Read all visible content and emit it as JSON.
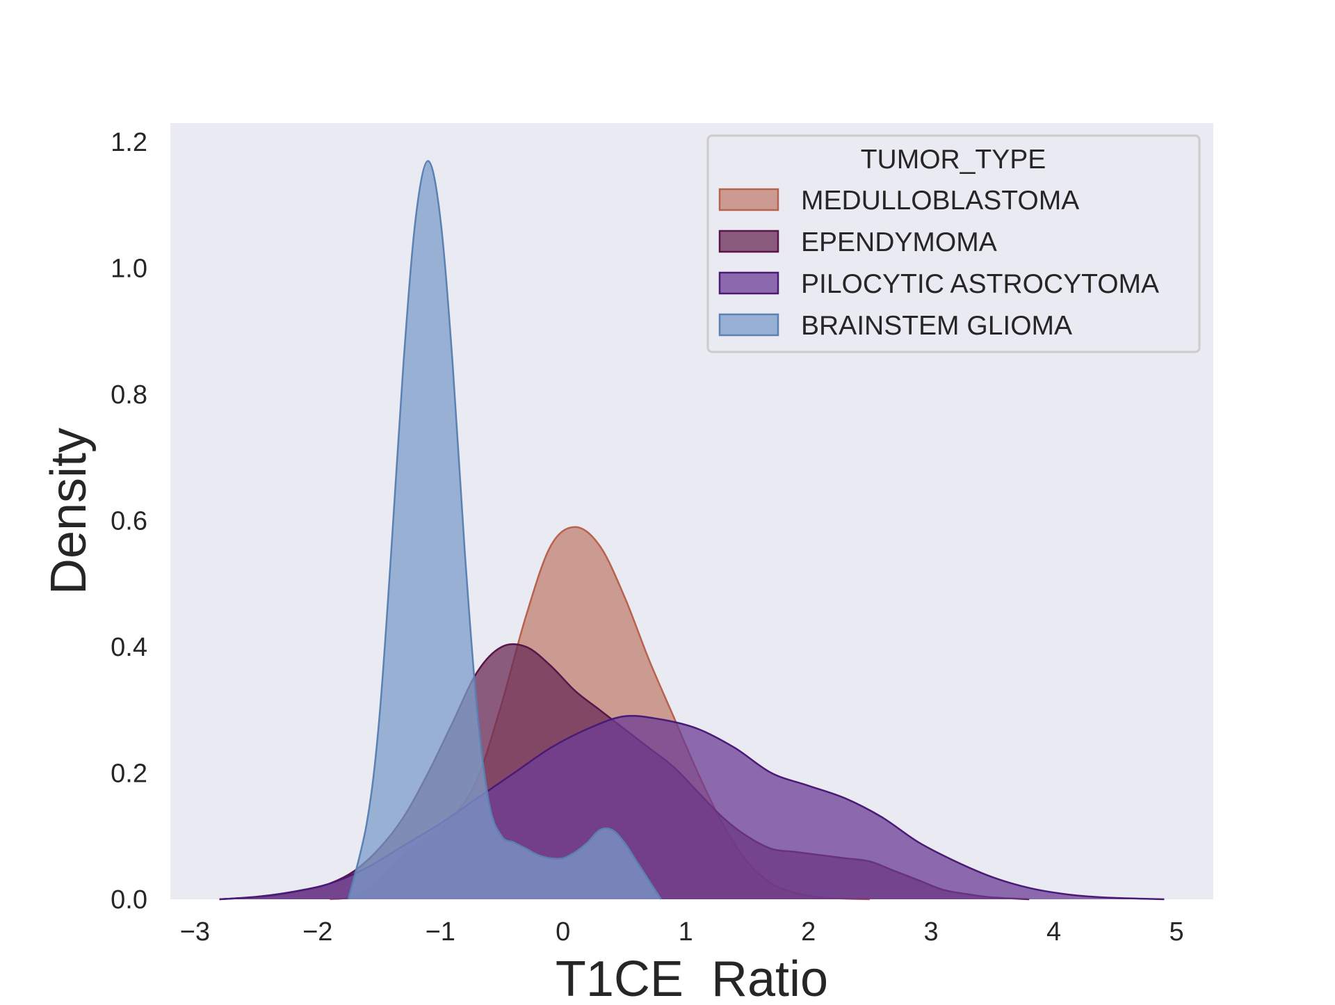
{
  "chart_data": {
    "type": "area",
    "xlabel": "T1CE_Ratio",
    "ylabel": "Density",
    "xlim": [
      -3.2,
      5.3
    ],
    "ylim": [
      0,
      1.23
    ],
    "x_ticks": [
      -3,
      -2,
      -1,
      0,
      1,
      2,
      3,
      4,
      5
    ],
    "x_tick_labels": [
      "−3",
      "−2",
      "−1",
      "0",
      "1",
      "2",
      "3",
      "4",
      "5"
    ],
    "y_ticks": [
      0.0,
      0.2,
      0.4,
      0.6,
      0.8,
      1.0,
      1.2
    ],
    "y_tick_labels": [
      "0.0",
      "0.2",
      "0.4",
      "0.6",
      "0.8",
      "1.0",
      "1.2"
    ],
    "grid": false,
    "background": "#eaeaf2",
    "legend": {
      "title": "TUMOR_TYPE",
      "position": "top-right"
    },
    "series": [
      {
        "name": "MEDULLOBLASTOMA",
        "fill": "#c07f6f",
        "stroke": "#b8614c",
        "x": [
          -1.9,
          -1.7,
          -1.5,
          -1.3,
          -1.1,
          -0.9,
          -0.7,
          -0.5,
          -0.3,
          -0.1,
          0.1,
          0.3,
          0.5,
          0.7,
          0.9,
          1.1,
          1.3,
          1.5,
          1.7,
          1.9,
          2.1,
          2.3,
          2.5
        ],
        "y": [
          0.0,
          0.005,
          0.03,
          0.07,
          0.1,
          0.13,
          0.19,
          0.31,
          0.45,
          0.56,
          0.59,
          0.56,
          0.48,
          0.38,
          0.29,
          0.2,
          0.12,
          0.06,
          0.025,
          0.01,
          0.003,
          0.001,
          0.0
        ]
      },
      {
        "name": "EPENDYMOMA",
        "fill": "#6a2b55",
        "stroke": "#5a1548",
        "x": [
          -2.8,
          -2.4,
          -2.1,
          -1.9,
          -1.7,
          -1.5,
          -1.3,
          -1.1,
          -0.9,
          -0.7,
          -0.5,
          -0.3,
          -0.1,
          0.1,
          0.3,
          0.5,
          0.7,
          0.9,
          1.1,
          1.3,
          1.5,
          1.7,
          1.9,
          2.1,
          2.3,
          2.5,
          2.7,
          2.9,
          3.1,
          3.3,
          3.5,
          3.8
        ],
        "y": [
          0.0,
          0.005,
          0.015,
          0.025,
          0.045,
          0.08,
          0.13,
          0.2,
          0.28,
          0.36,
          0.4,
          0.4,
          0.37,
          0.33,
          0.3,
          0.27,
          0.24,
          0.21,
          0.17,
          0.13,
          0.1,
          0.08,
          0.075,
          0.07,
          0.065,
          0.06,
          0.045,
          0.03,
          0.015,
          0.008,
          0.003,
          0.0
        ]
      },
      {
        "name": "PILOCYTIC ASTROCYTOMA",
        "fill": "#6c3c94",
        "stroke": "#4a1a78",
        "x": [
          -2.8,
          -2.5,
          -2.2,
          -1.9,
          -1.6,
          -1.3,
          -1.0,
          -0.7,
          -0.4,
          -0.1,
          0.2,
          0.5,
          0.8,
          1.1,
          1.4,
          1.7,
          2.0,
          2.3,
          2.6,
          2.9,
          3.2,
          3.5,
          3.8,
          4.1,
          4.4,
          4.7,
          4.9
        ],
        "y": [
          0.0,
          0.004,
          0.012,
          0.025,
          0.05,
          0.085,
          0.12,
          0.16,
          0.2,
          0.24,
          0.27,
          0.29,
          0.285,
          0.27,
          0.24,
          0.2,
          0.18,
          0.16,
          0.13,
          0.09,
          0.06,
          0.035,
          0.018,
          0.008,
          0.003,
          0.001,
          0.0
        ]
      },
      {
        "name": "BRAINSTEM GLIOMA",
        "fill": "#7b9cc9",
        "stroke": "#5b80b4",
        "x": [
          -1.75,
          -1.6,
          -1.5,
          -1.4,
          -1.3,
          -1.2,
          -1.1,
          -1.0,
          -0.9,
          -0.8,
          -0.7,
          -0.6,
          -0.5,
          -0.4,
          -0.3,
          -0.2,
          -0.1,
          0.0,
          0.1,
          0.2,
          0.3,
          0.4,
          0.5,
          0.6,
          0.7,
          0.8
        ],
        "y": [
          0.0,
          0.12,
          0.28,
          0.55,
          0.85,
          1.08,
          1.17,
          1.08,
          0.85,
          0.55,
          0.3,
          0.15,
          0.1,
          0.09,
          0.08,
          0.07,
          0.065,
          0.065,
          0.075,
          0.09,
          0.11,
          0.11,
          0.09,
          0.06,
          0.03,
          0.0
        ]
      }
    ]
  }
}
